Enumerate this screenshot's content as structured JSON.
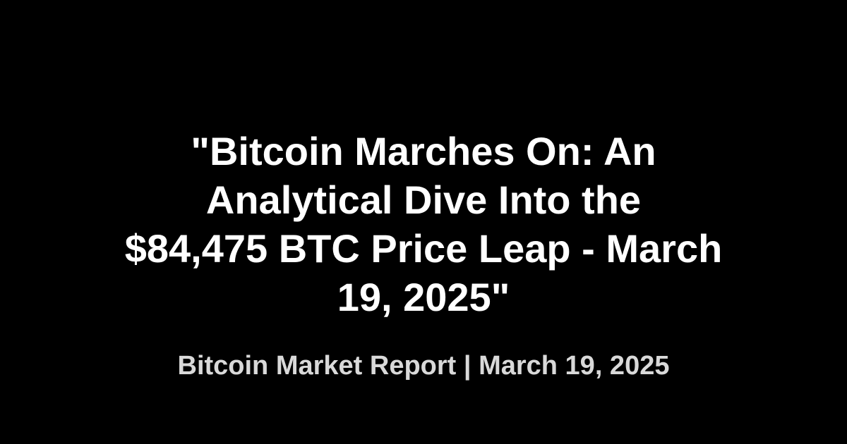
{
  "card": {
    "background_color": "#000000",
    "title_lines": [
      "\"Bitcoin Marches On: An",
      "Analytical Dive Into the",
      "$84,475 BTC Price Leap - March",
      "19, 2025\""
    ],
    "title_color": "#ffffff",
    "subtitle": "Bitcoin Market Report | March 19, 2025",
    "subtitle_color": "#d9d9d9"
  }
}
